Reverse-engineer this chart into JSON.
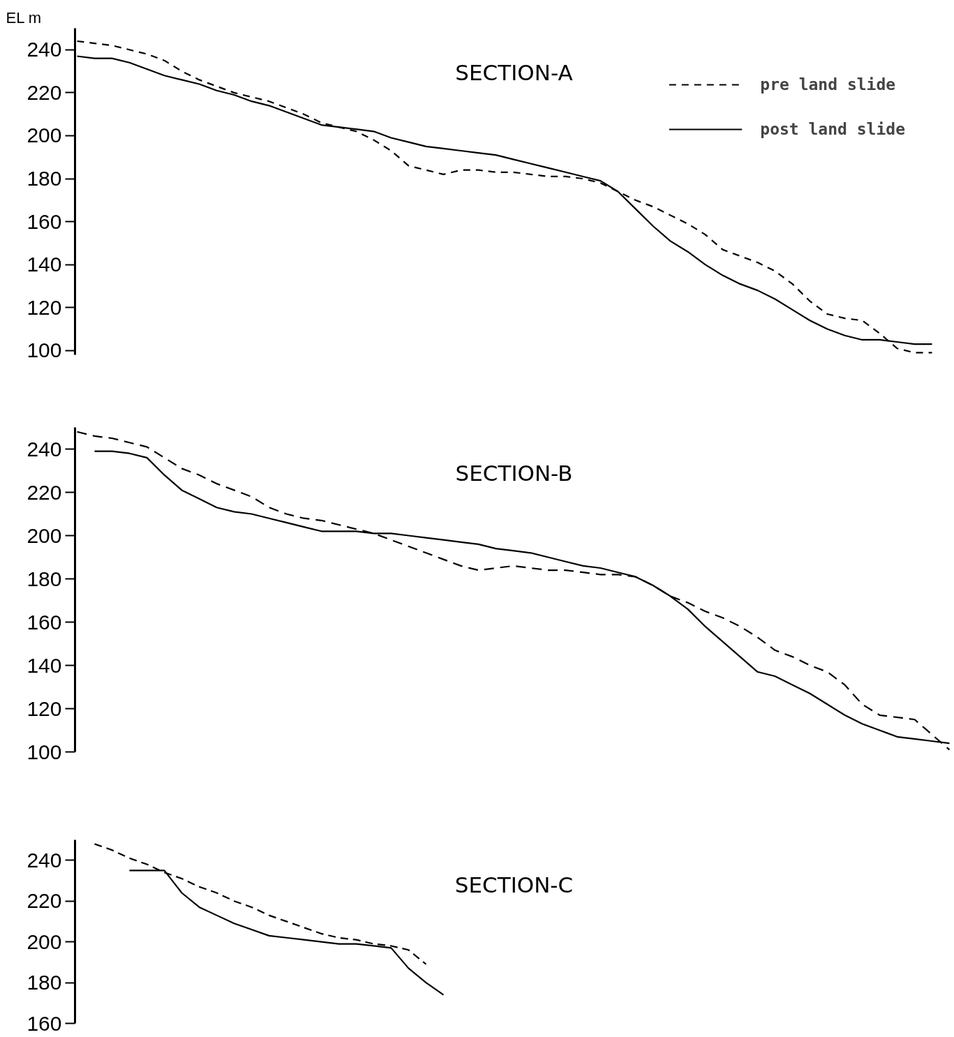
{
  "chart_data": [
    {
      "type": "line",
      "title": "SECTION-A",
      "ylabel": "EL m",
      "legend": "top right",
      "tick_labels": "y",
      "ylim": [
        98,
        250
      ],
      "yticks": [
        100,
        120,
        140,
        160,
        180,
        200,
        220,
        240
      ],
      "categories": [
        null,
        null,
        null,
        null,
        null,
        null,
        null,
        null,
        null,
        null,
        null,
        null,
        null,
        null,
        null,
        null,
        null,
        null,
        null,
        null,
        null,
        null,
        null,
        null,
        null,
        null,
        null,
        null,
        null,
        null,
        null,
        null,
        null,
        null,
        null,
        null,
        null,
        null,
        null,
        null,
        null,
        null,
        null,
        null,
        null,
        null,
        null,
        null,
        null,
        null
      ],
      "series": [
        {
          "name": "pre land slide",
          "color": "#000000",
          "line_style": "dashed",
          "values": [
            244,
            243,
            242,
            240,
            238,
            235,
            230,
            226,
            223,
            220,
            218,
            216,
            213,
            210,
            206,
            204,
            202,
            198,
            193,
            186,
            184,
            182,
            184,
            184,
            183,
            183,
            182,
            181,
            181,
            180,
            178,
            174,
            170,
            167,
            163,
            159,
            154,
            147,
            144,
            141,
            137,
            131,
            123,
            117,
            115,
            114,
            108,
            101,
            99,
            99
          ]
        },
        {
          "name": "post land slide",
          "color": "#000000",
          "line_style": "solid",
          "values": [
            237,
            236,
            236,
            234,
            231,
            228,
            226,
            224,
            221,
            219,
            216,
            214,
            211,
            208,
            205,
            204,
            203,
            202,
            199,
            197,
            195,
            194,
            193,
            192,
            191,
            189,
            187,
            185,
            183,
            181,
            179,
            174,
            166,
            158,
            151,
            146,
            140,
            135,
            131,
            128,
            124,
            119,
            114,
            110,
            107,
            105,
            105,
            104,
            103,
            103
          ]
        }
      ]
    },
    {
      "type": "line",
      "title": "SECTION-B",
      "tick_labels": "y",
      "ylim": [
        100,
        250
      ],
      "yticks": [
        100,
        120,
        140,
        160,
        180,
        200,
        220,
        240
      ],
      "categories": [
        null,
        null,
        null,
        null,
        null,
        null,
        null,
        null,
        null,
        null,
        null,
        null,
        null,
        null,
        null,
        null,
        null,
        null,
        null,
        null,
        null,
        null,
        null,
        null,
        null,
        null,
        null,
        null,
        null,
        null,
        null,
        null,
        null,
        null,
        null,
        null,
        null,
        null,
        null,
        null,
        null,
        null,
        null,
        null,
        null,
        null,
        null,
        null,
        null,
        null,
        null
      ],
      "series": [
        {
          "color": "#000000",
          "line_style": "dashed",
          "values": [
            248,
            246,
            245,
            243,
            241,
            236,
            231,
            228,
            224,
            221,
            218,
            213,
            210,
            208,
            207,
            205,
            203,
            201,
            198,
            195,
            192,
            189,
            186,
            184,
            185,
            186,
            185,
            184,
            184,
            183,
            182,
            182,
            181,
            177,
            172,
            169,
            165,
            162,
            158,
            153,
            147,
            144,
            140,
            137,
            131,
            122,
            117,
            116,
            115,
            108,
            101
          ]
        },
        {
          "color": "#000000",
          "line_style": "solid",
          "values": [
            null,
            239,
            239,
            238,
            236,
            228,
            221,
            217,
            213,
            211,
            210,
            208,
            206,
            204,
            202,
            202,
            202,
            201,
            201,
            200,
            199,
            198,
            197,
            196,
            194,
            193,
            192,
            190,
            188,
            186,
            185,
            183,
            181,
            177,
            172,
            166,
            158,
            151,
            144,
            137,
            135,
            131,
            127,
            122,
            117,
            113,
            110,
            107,
            106,
            105,
            104
          ]
        }
      ]
    },
    {
      "type": "line",
      "title": "SECTION-C",
      "tick_labels": "y",
      "ylim": [
        160,
        250
      ],
      "yticks": [
        160,
        180,
        200,
        220,
        240
      ],
      "categories": [
        null,
        null,
        null,
        null,
        null,
        null,
        null,
        null,
        null,
        null,
        null,
        null,
        null,
        null,
        null,
        null,
        null,
        null,
        null,
        null,
        null,
        null
      ],
      "series": [
        {
          "color": "#000000",
          "line_style": "dashed",
          "values": [
            null,
            248,
            245,
            241,
            238,
            234,
            231,
            227,
            224,
            220,
            217,
            213,
            210,
            207,
            204,
            202,
            201,
            199,
            198,
            196,
            189,
            null
          ]
        },
        {
          "color": "#000000",
          "line_style": "solid",
          "values": [
            null,
            null,
            null,
            235,
            235,
            235,
            224,
            217,
            213,
            209,
            206,
            203,
            202,
            201,
            200,
            199,
            199,
            198,
            197,
            187,
            180,
            174
          ]
        }
      ]
    }
  ]
}
